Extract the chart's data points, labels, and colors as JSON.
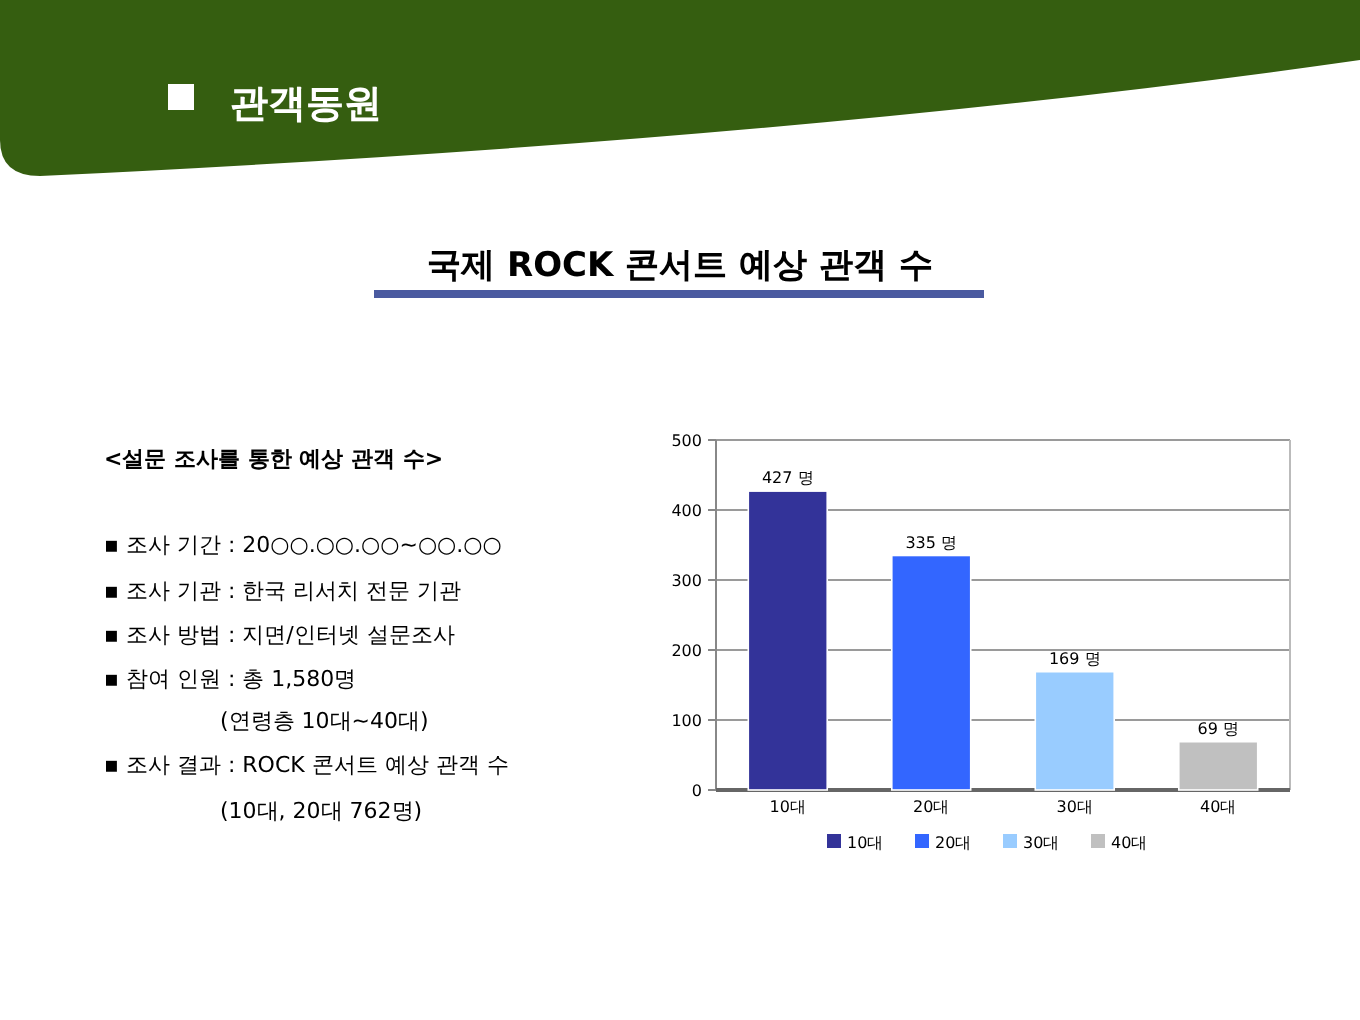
{
  "chart_data": {
    "type": "bar",
    "title": "국제 ROCK 콘서트 예상 관객 수",
    "categories": [
      "10대",
      "20대",
      "30대",
      "40대"
    ],
    "series": [
      {
        "name": "10대",
        "color": "#333399",
        "values": [
          427,
          null,
          null,
          null
        ],
        "value_labels": [
          "427 명",
          null,
          null,
          null
        ]
      },
      {
        "name": "20대",
        "color": "#3366ff",
        "values": [
          null,
          335,
          null,
          null
        ],
        "value_labels": [
          null,
          "335 명",
          null,
          null
        ]
      },
      {
        "name": "30대",
        "color": "#99ccff",
        "values": [
          null,
          null,
          169,
          null
        ],
        "value_labels": [
          null,
          null,
          "169 명",
          null
        ]
      },
      {
        "name": "40대",
        "color": "#c0c0c0",
        "values": [
          null,
          null,
          null,
          69
        ],
        "value_labels": [
          null,
          null,
          null,
          "69 명"
        ]
      }
    ],
    "ylim": [
      0,
      500
    ],
    "yticks": [
      0,
      100,
      200,
      300,
      400,
      500
    ],
    "grid": "y",
    "legend": "bottom",
    "annotations": [
      "관객동원",
      "<설문 조사를 통한 예상 관객 수>",
      "▪ 조사 기간 : 20○○.○○.○○~○○.○○",
      "▪ 조사 기관 : 한국 리서치 전문 기관",
      "▪ 조사 방법 : 지면/인터넷 설문조사",
      "▪ 참여 인원 : 총 1,580명",
      "(연령층 10대~40대)",
      "▪ 조사 결과 : ROCK 콘서트 예상 관객 수",
      "(10대, 20대 762명)"
    ]
  }
}
